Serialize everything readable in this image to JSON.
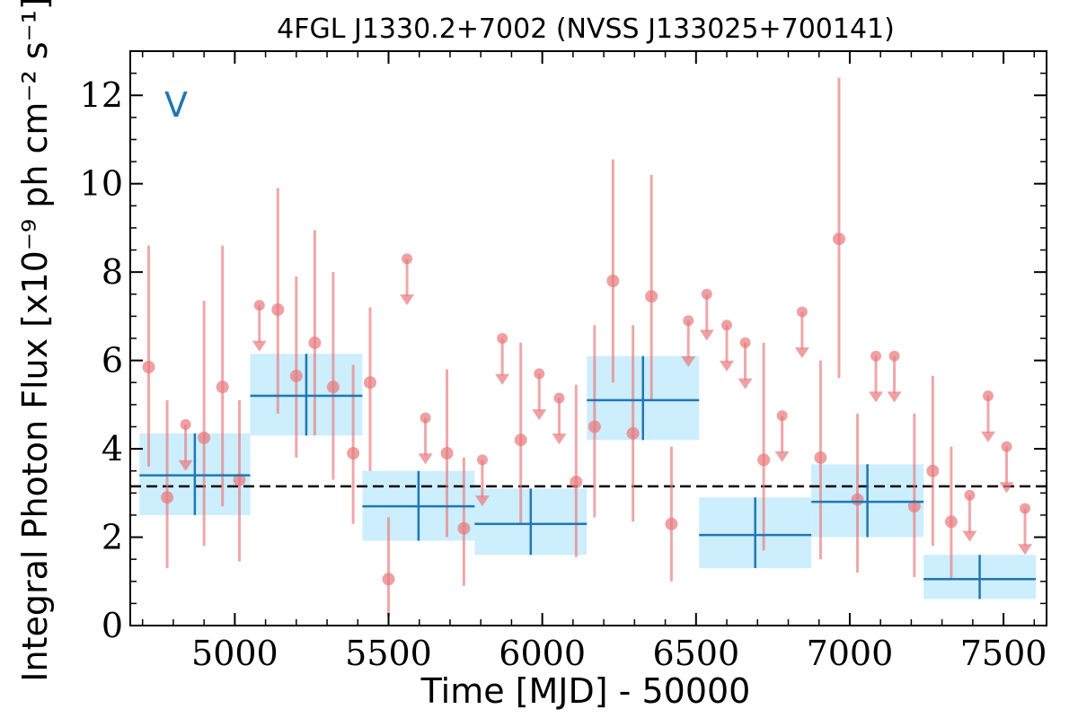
{
  "chart_data": {
    "type": "scatter",
    "title": "4FGL J1330.2+7002 (NVSS J133025+700141)",
    "xlabel": "Time [MJD] - 50000",
    "ylabel": "Integral Photon Flux [x10⁻⁹ ph cm⁻² s⁻¹]",
    "tag": "V",
    "xlim": [
      4660,
      7640
    ],
    "ylim": [
      0,
      13
    ],
    "xticks": [
      5000,
      5500,
      6000,
      6500,
      7000,
      7500
    ],
    "yticks": [
      0,
      2,
      4,
      6,
      8,
      10,
      12
    ],
    "grid": false,
    "mean_flux": 3.15,
    "colors": {
      "points": "#e8787a",
      "bins": "#1f77b4",
      "bin_fill": "#cdeefc",
      "mean_line": "#000000",
      "tag": "#1f77b4"
    },
    "series": [
      {
        "kind": "detections",
        "points": [
          {
            "x": 4720,
            "y": 5.85,
            "lo": 3.6,
            "hi": 8.6
          },
          {
            "x": 4780,
            "y": 2.9,
            "lo": 1.3,
            "hi": 5.1
          },
          {
            "x": 4900,
            "y": 4.25,
            "lo": 1.8,
            "hi": 7.35
          },
          {
            "x": 4960,
            "y": 5.4,
            "lo": 2.7,
            "hi": 8.6
          },
          {
            "x": 5015,
            "y": 3.3,
            "lo": 1.45,
            "hi": 5.1
          },
          {
            "x": 5140,
            "y": 7.15,
            "lo": 4.8,
            "hi": 9.9
          },
          {
            "x": 5200,
            "y": 5.65,
            "lo": 3.8,
            "hi": 7.9
          },
          {
            "x": 5260,
            "y": 6.4,
            "lo": 4.3,
            "hi": 8.95
          },
          {
            "x": 5320,
            "y": 5.4,
            "lo": 3.3,
            "hi": 8.0
          },
          {
            "x": 5385,
            "y": 3.9,
            "lo": 2.3,
            "hi": 5.9
          },
          {
            "x": 5440,
            "y": 5.5,
            "lo": 3.5,
            "hi": 7.2
          },
          {
            "x": 5500,
            "y": 1.05,
            "lo": 0.2,
            "hi": 2.45
          },
          {
            "x": 5690,
            "y": 3.9,
            "lo": 2.0,
            "hi": 5.8
          },
          {
            "x": 5745,
            "y": 2.2,
            "lo": 0.9,
            "hi": 3.8
          },
          {
            "x": 5930,
            "y": 4.2,
            "lo": 2.3,
            "hi": 6.4
          },
          {
            "x": 6110,
            "y": 3.25,
            "lo": 1.55,
            "hi": 5.45
          },
          {
            "x": 6170,
            "y": 4.5,
            "lo": 2.45,
            "hi": 6.8
          },
          {
            "x": 6230,
            "y": 7.8,
            "lo": 5.5,
            "hi": 10.55
          },
          {
            "x": 6295,
            "y": 4.35,
            "lo": 2.35,
            "hi": 6.8
          },
          {
            "x": 6355,
            "y": 7.45,
            "lo": 5.1,
            "hi": 10.2
          },
          {
            "x": 6420,
            "y": 2.3,
            "lo": 1.0,
            "hi": 4.05
          },
          {
            "x": 6720,
            "y": 3.75,
            "lo": 1.7,
            "hi": 6.4
          },
          {
            "x": 6905,
            "y": 3.8,
            "lo": 1.5,
            "hi": 6.0
          },
          {
            "x": 6965,
            "y": 8.75,
            "lo": 5.6,
            "hi": 12.4
          },
          {
            "x": 7025,
            "y": 2.85,
            "lo": 1.2,
            "hi": 4.8
          },
          {
            "x": 7210,
            "y": 2.7,
            "lo": 1.1,
            "hi": 4.8
          },
          {
            "x": 7270,
            "y": 3.5,
            "lo": 1.8,
            "hi": 5.65
          },
          {
            "x": 7330,
            "y": 2.35,
            "lo": 1.05,
            "hi": 4.05
          }
        ]
      },
      {
        "kind": "upper_limits",
        "points": [
          {
            "x": 4840,
            "y": 4.55
          },
          {
            "x": 5080,
            "y": 7.25
          },
          {
            "x": 5560,
            "y": 8.3
          },
          {
            "x": 5620,
            "y": 4.7
          },
          {
            "x": 5805,
            "y": 3.75
          },
          {
            "x": 5870,
            "y": 6.5
          },
          {
            "x": 5990,
            "y": 5.7
          },
          {
            "x": 6055,
            "y": 5.15
          },
          {
            "x": 6475,
            "y": 6.9
          },
          {
            "x": 6535,
            "y": 7.5
          },
          {
            "x": 6600,
            "y": 6.8
          },
          {
            "x": 6660,
            "y": 6.4
          },
          {
            "x": 6780,
            "y": 4.75
          },
          {
            "x": 6845,
            "y": 7.1
          },
          {
            "x": 7085,
            "y": 6.1
          },
          {
            "x": 7145,
            "y": 6.1
          },
          {
            "x": 7390,
            "y": 2.95
          },
          {
            "x": 7450,
            "y": 5.2
          },
          {
            "x": 7510,
            "y": 4.05
          },
          {
            "x": 7570,
            "y": 2.65
          }
        ]
      },
      {
        "kind": "bins",
        "bins": [
          {
            "x0": 4690,
            "x1": 5050,
            "y": 3.4,
            "lo": 2.5,
            "hi": 4.35
          },
          {
            "x0": 5050,
            "x1": 5415,
            "y": 5.2,
            "lo": 4.3,
            "hi": 6.15
          },
          {
            "x0": 5415,
            "x1": 5780,
            "y": 2.7,
            "lo": 1.92,
            "hi": 3.5
          },
          {
            "x0": 5780,
            "x1": 6145,
            "y": 2.3,
            "lo": 1.6,
            "hi": 3.1
          },
          {
            "x0": 6145,
            "x1": 6510,
            "y": 5.1,
            "lo": 4.2,
            "hi": 6.1
          },
          {
            "x0": 6510,
            "x1": 6875,
            "y": 2.05,
            "lo": 1.3,
            "hi": 2.9
          },
          {
            "x0": 6875,
            "x1": 7240,
            "y": 2.8,
            "lo": 2.0,
            "hi": 3.65
          },
          {
            "x0": 7240,
            "x1": 7605,
            "y": 1.05,
            "lo": 0.6,
            "hi": 1.6
          }
        ]
      }
    ]
  }
}
